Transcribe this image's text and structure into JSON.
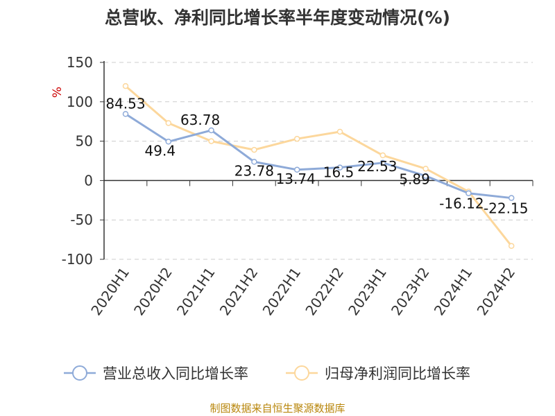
{
  "title": "总营收、净利同比增长率半年度变动情况(%)",
  "footer": "制图数据来自恒生聚源数据库",
  "chart_data": {
    "type": "line",
    "title": "总营收、净利同比增长率半年度变动情况(%)",
    "ylabel": "%",
    "xlabel": "",
    "ylim": [
      -100,
      150
    ],
    "yticks": [
      150,
      100,
      50,
      0,
      -50,
      -100
    ],
    "ytick_labels": [
      "150",
      "100",
      "50",
      "0",
      "-50",
      "-100"
    ],
    "categories": [
      "2020H1",
      "2020H2",
      "2021H1",
      "2021H2",
      "2022H1",
      "2022H2",
      "2023H1",
      "2023H2",
      "2024H1",
      "2024H2"
    ],
    "grid": true,
    "legend_position": "bottom",
    "series": [
      {
        "name": "营业总收入同比增长率",
        "color": "#8eaad8",
        "values": [
          84.53,
          49.4,
          63.78,
          23.78,
          13.74,
          16.5,
          22.53,
          5.89,
          -16.12,
          -22.15
        ],
        "labels": [
          "84.53",
          "49.4",
          "63.78",
          "23.78",
          "13.74",
          "16.5",
          "22.53",
          "5.89",
          "-16.12",
          "-22.15"
        ]
      },
      {
        "name": "归母净利润同比增长率",
        "color": "#fcd79c",
        "values": [
          120,
          73,
          50,
          39,
          53,
          62,
          32,
          15,
          -14,
          -83
        ]
      }
    ]
  }
}
